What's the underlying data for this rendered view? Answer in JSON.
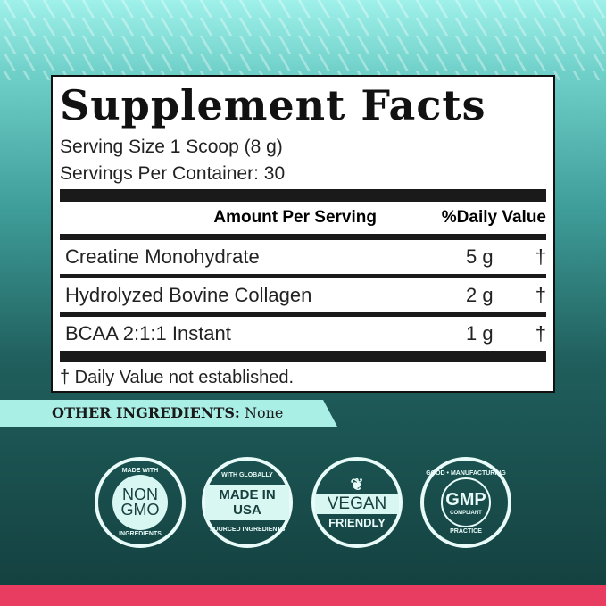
{
  "facts": {
    "title": "Supplement Facts",
    "serving_size": "Serving Size 1 Scoop (8 g)",
    "servings_per_container": "Servings Per Container: 30",
    "header_amount": "Amount Per Serving",
    "header_dv": "%Daily Value",
    "rows": [
      {
        "name": "Creatine Monohydrate",
        "amount": "5 g",
        "dv": "†"
      },
      {
        "name": "Hydrolyzed Bovine Collagen",
        "amount": "2 g",
        "dv": "†"
      },
      {
        "name": "BCAA 2:1:1 Instant",
        "amount": "1 g",
        "dv": "†"
      }
    ],
    "footnote": "† Daily Value not established."
  },
  "other": {
    "label": "OTHER INGREDIENTS:",
    "value": "None"
  },
  "badges": [
    {
      "top": "MADE WITH",
      "main1": "NON",
      "main2": "GMO",
      "bottom": "INGREDIENTS"
    },
    {
      "top": "WITH GLOBALLY",
      "main1": "MADE IN USA",
      "bottom": "SOURCED INGREDIENTS"
    },
    {
      "main1": "VEGAN",
      "main2": "FRIENDLY"
    },
    {
      "top": "GOOD • MANUFACTURING",
      "main1": "GMP",
      "main2": "COMPLIANT",
      "bottom": "PRACTICE"
    }
  ],
  "colors": {
    "accent_bar": "#e83c60",
    "band": "#a9efe6"
  }
}
